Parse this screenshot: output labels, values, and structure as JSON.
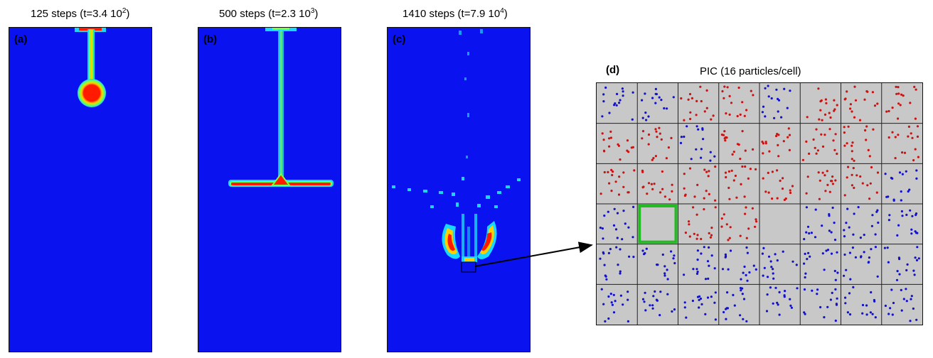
{
  "panels": [
    {
      "label": "(a)",
      "title_pre": "125 steps (t=3.4 10",
      "title_exp": "2",
      "title_post": ")"
    },
    {
      "label": "(b)",
      "title_pre": "500 steps (t=2.3 10",
      "title_exp": "3",
      "title_post": ")"
    },
    {
      "label": "(c)",
      "title_pre": "1410 steps (t=7.9 10",
      "title_exp": "4",
      "title_post": ")"
    }
  ],
  "pic": {
    "label": "(d)",
    "title": "PIC (16 particles/cell)",
    "columns": 8,
    "rows": 6,
    "particles_per_cell": 16,
    "cell_types": [
      "B",
      "B",
      "R",
      "R",
      "B",
      "R",
      "R",
      "R",
      "R",
      "R",
      "B",
      "R",
      "R",
      "R",
      "R",
      "R",
      "R",
      "R",
      "R",
      "R",
      "R",
      "R",
      "R",
      "B",
      "B",
      "E",
      "R",
      "R",
      "E",
      "B",
      "B",
      "B",
      "B",
      "B",
      "B",
      "B",
      "B",
      "B",
      "B",
      "B",
      "B",
      "B",
      "B",
      "B",
      "B",
      "B",
      "B",
      "B"
    ],
    "highlighted_cell": {
      "row": 3,
      "col": 1
    }
  },
  "colors": {
    "field_background": "#0a12f0",
    "field_high": "#ff1a00",
    "field_mid": "#7cff3c",
    "field_low": "#19d8ff",
    "grid_background": "#c8c8c8",
    "particle_red": "#cc1111",
    "particle_blue": "#1111cc",
    "highlight": "#22bb22"
  }
}
